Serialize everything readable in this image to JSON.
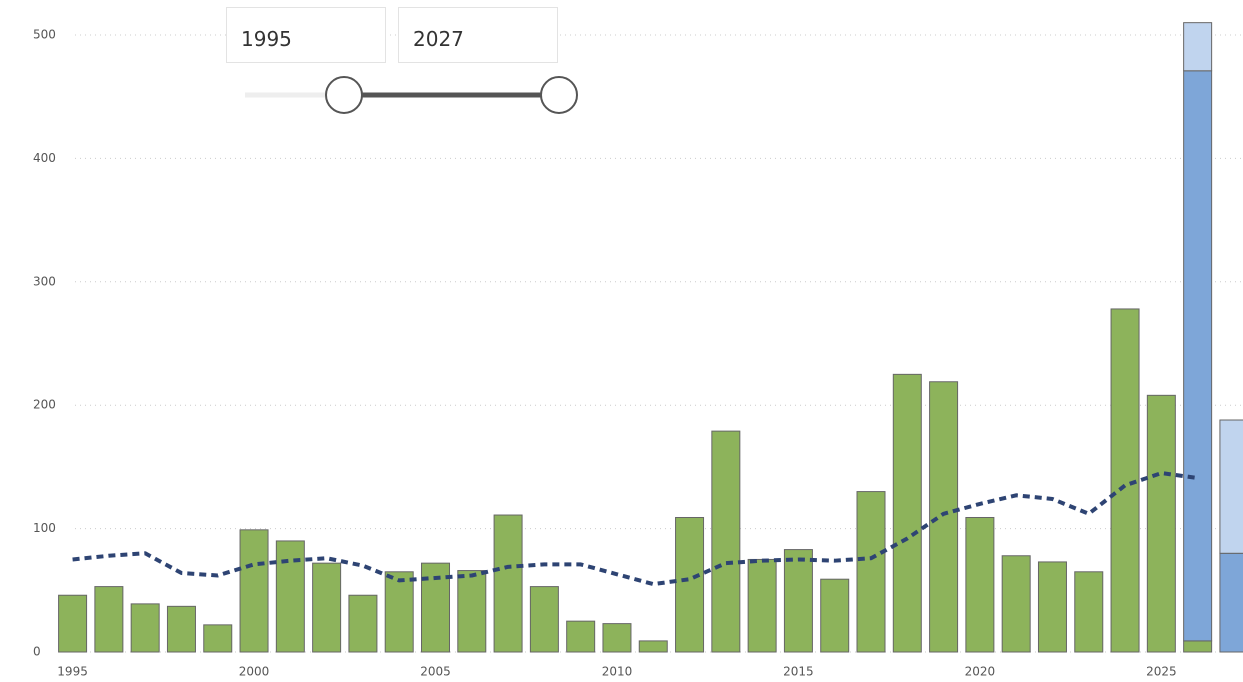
{
  "controls": {
    "from": 1995,
    "to": 2027
  },
  "chart_data": {
    "type": "bar",
    "stacked": true,
    "x": [
      1995,
      1996,
      1997,
      1998,
      1999,
      2000,
      2001,
      2002,
      2003,
      2004,
      2005,
      2006,
      2007,
      2008,
      2009,
      2010,
      2011,
      2012,
      2013,
      2014,
      2015,
      2016,
      2017,
      2018,
      2019,
      2020,
      2021,
      2022,
      2023,
      2024,
      2025,
      2026,
      2027
    ],
    "xlim": [
      1993,
      2027.25
    ],
    "xticks": [
      1995,
      2000,
      2005,
      2010,
      2015,
      2020,
      2025
    ],
    "ylim": [
      0,
      500
    ],
    "yticks": [
      0,
      100,
      200,
      300,
      400,
      500
    ],
    "grid": true,
    "series": [
      {
        "color": "#8db35b",
        "values": [
          46,
          53,
          39,
          37,
          22,
          99,
          90,
          72,
          46,
          65,
          72,
          66,
          111,
          53,
          25,
          23,
          9,
          109,
          179,
          75,
          83,
          59,
          130,
          225,
          219,
          109,
          78,
          73,
          65,
          278,
          208,
          9,
          null
        ]
      },
      {
        "color": "#7ea6d8",
        "values": [
          null,
          null,
          null,
          null,
          null,
          null,
          null,
          null,
          null,
          null,
          null,
          null,
          null,
          null,
          null,
          null,
          null,
          null,
          null,
          null,
          null,
          null,
          null,
          null,
          null,
          null,
          null,
          null,
          null,
          null,
          null,
          462,
          80
        ]
      },
      {
        "color": "#c0d4ee",
        "values": [
          null,
          null,
          null,
          null,
          null,
          null,
          null,
          null,
          null,
          null,
          null,
          null,
          null,
          null,
          null,
          null,
          null,
          null,
          null,
          null,
          null,
          null,
          null,
          null,
          null,
          null,
          null,
          null,
          null,
          null,
          null,
          39,
          108
        ]
      }
    ],
    "line": {
      "color": "#2e4473",
      "dashed": true,
      "values": [
        75,
        78,
        80,
        64,
        62,
        71,
        74,
        76,
        70,
        58,
        60,
        62,
        69,
        71,
        71,
        63,
        55,
        59,
        72,
        74,
        75,
        74,
        76,
        92,
        112,
        120,
        127,
        124,
        112,
        135,
        145,
        141,
        null
      ]
    }
  }
}
